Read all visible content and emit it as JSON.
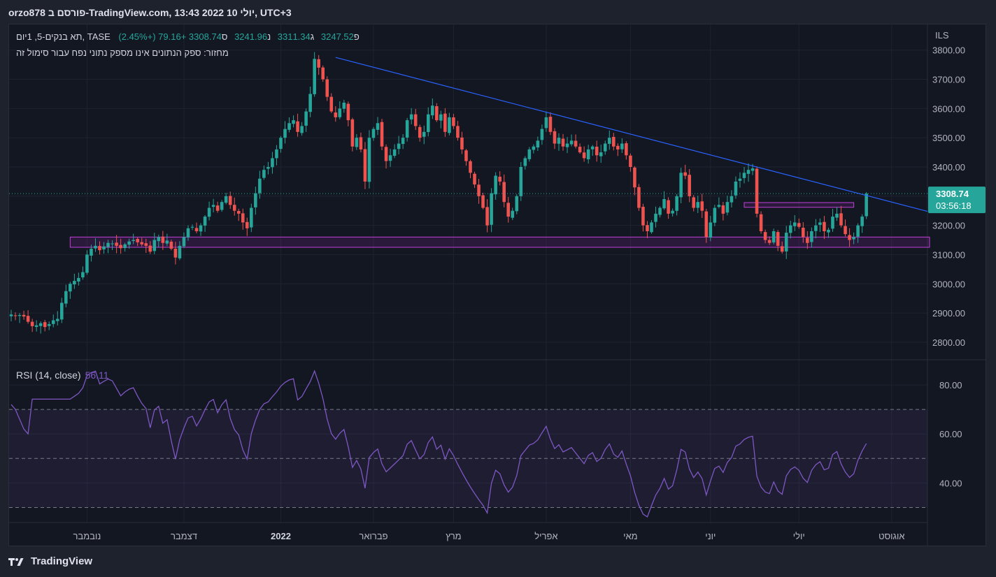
{
  "header": {
    "title": "orzo878 פורסם ב-TradingView.com, 13:43 2022 יולי 10, UTC+3"
  },
  "legend": {
    "symbol": "תא בנקים-5, 1יום, TASE",
    "open_label": "פ",
    "open": "3247.52",
    "high_label": "ג",
    "high": "3311.34",
    "low_label": "נ",
    "low": "3241.96",
    "close_label": "ס",
    "close": "3308.74",
    "change": "+79.16 (+2.45%)",
    "volume_note": "מחזור: ספק הנתונים אינו מספק נתוני נפח עבור סימול זה"
  },
  "rsi_legend": {
    "label": "RSI (14, close)",
    "value": "56.11"
  },
  "footer": {
    "brand": "TradingView"
  },
  "colors": {
    "up": "#26a69a",
    "down": "#ef5350",
    "trendline": "#2962ff",
    "zone": "#9c27b0",
    "rsi": "#7e57c2",
    "background": "#131722"
  },
  "chart_data": [
    {
      "type": "candlestick",
      "title": "",
      "y_unit": "ILS",
      "ylim": [
        2740,
        3840
      ],
      "y_ticks": [
        "3800.00",
        "3700.00",
        "3600.00",
        "3500.00",
        "3400.00",
        "3300.00",
        "3200.00",
        "3100.00",
        "3000.00",
        "2900.00",
        "2800.00"
      ],
      "y_tick_values": [
        3800,
        3700,
        3600,
        3500,
        3400,
        3300,
        3200,
        3100,
        3000,
        2900,
        2800
      ],
      "x_ticks": [
        {
          "label": "נובמבר",
          "bar": 18
        },
        {
          "label": "דצמבר",
          "bar": 41
        },
        {
          "label": "2022",
          "bar": 64
        },
        {
          "label": "פברואר",
          "bar": 86
        },
        {
          "label": "מרץ",
          "bar": 105
        },
        {
          "label": "אפריל",
          "bar": 127
        },
        {
          "label": "מאי",
          "bar": 147
        },
        {
          "label": "יוני",
          "bar": 166
        },
        {
          "label": "יולי",
          "bar": 187
        },
        {
          "label": "אוגוסט",
          "bar": 209
        }
      ],
      "bars_total": 218,
      "last_price": {
        "value": 3308.74,
        "label": "3308.74",
        "countdown": "03:56:18"
      },
      "trendline": {
        "from": {
          "bar": 77,
          "price": 3775
        },
        "to": {
          "bar": 218,
          "price": 3248
        }
      },
      "zones": [
        {
          "from_bar": 14,
          "to_bar": 218,
          "top": 3160,
          "bottom": 3125
        },
        {
          "from_bar": 174,
          "to_bar": 200,
          "top": 3278,
          "bottom": 3262
        }
      ],
      "closes": [
        2895,
        2890,
        2893,
        2888,
        2870,
        2855,
        2858,
        2865,
        2852,
        2862,
        2875,
        2880,
        2935,
        2975,
        3000,
        3010,
        3020,
        3040,
        3100,
        3120,
        3130,
        3115,
        3128,
        3140,
        3138,
        3130,
        3122,
        3135,
        3145,
        3150,
        3142,
        3135,
        3130,
        3110,
        3150,
        3160,
        3140,
        3148,
        3120,
        3090,
        3130,
        3160,
        3190,
        3195,
        3180,
        3200,
        3230,
        3260,
        3270,
        3250,
        3280,
        3300,
        3270,
        3250,
        3240,
        3210,
        3190,
        3260,
        3310,
        3360,
        3390,
        3400,
        3430,
        3460,
        3500,
        3530,
        3550,
        3560,
        3520,
        3540,
        3590,
        3650,
        3770,
        3740,
        3700,
        3640,
        3590,
        3570,
        3600,
        3620,
        3560,
        3470,
        3500,
        3460,
        3350,
        3500,
        3530,
        3550,
        3470,
        3420,
        3440,
        3460,
        3480,
        3500,
        3560,
        3580,
        3540,
        3500,
        3520,
        3580,
        3610,
        3560,
        3580,
        3520,
        3570,
        3540,
        3500,
        3460,
        3420,
        3380,
        3340,
        3300,
        3260,
        3200,
        3310,
        3370,
        3350,
        3280,
        3230,
        3250,
        3300,
        3400,
        3430,
        3460,
        3470,
        3490,
        3530,
        3570,
        3520,
        3480,
        3500,
        3470,
        3480,
        3490,
        3470,
        3450,
        3430,
        3460,
        3470,
        3440,
        3450,
        3480,
        3500,
        3470,
        3460,
        3480,
        3440,
        3400,
        3330,
        3260,
        3200,
        3180,
        3210,
        3240,
        3260,
        3290,
        3240,
        3250,
        3300,
        3380,
        3370,
        3300,
        3260,
        3280,
        3250,
        3160,
        3210,
        3260,
        3270,
        3240,
        3280,
        3300,
        3350,
        3360,
        3380,
        3390,
        3395,
        3240,
        3180,
        3150,
        3140,
        3180,
        3130,
        3110,
        3175,
        3200,
        3210,
        3195,
        3160,
        3140,
        3180,
        3200,
        3210,
        3180,
        3185,
        3230,
        3240,
        3200,
        3170,
        3150,
        3160,
        3200,
        3230,
        3308.74
      ]
    },
    {
      "type": "line",
      "title": "RSI (14, close)",
      "ylim": [
        25,
        88
      ],
      "y_ticks": [
        "80.00",
        "60.00",
        "40.00"
      ],
      "y_tick_values": [
        80,
        60,
        40
      ],
      "bands": {
        "upper": 70,
        "middle": 50,
        "lower": 30
      },
      "last": 56.11
    }
  ]
}
